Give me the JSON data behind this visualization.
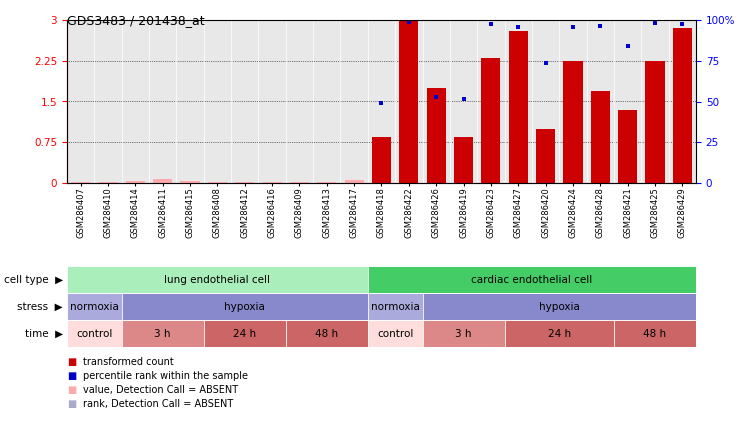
{
  "title": "GDS3483 / 201438_at",
  "samples": [
    "GSM286407",
    "GSM286410",
    "GSM286414",
    "GSM286411",
    "GSM286415",
    "GSM286408",
    "GSM286412",
    "GSM286416",
    "GSM286409",
    "GSM286413",
    "GSM286417",
    "GSM286418",
    "GSM286422",
    "GSM286426",
    "GSM286419",
    "GSM286423",
    "GSM286427",
    "GSM286420",
    "GSM286424",
    "GSM286428",
    "GSM286421",
    "GSM286425",
    "GSM286429"
  ],
  "bar_values": [
    0.02,
    0.01,
    0.04,
    0.07,
    0.03,
    0.01,
    0.01,
    0.01,
    0.01,
    0.02,
    0.05,
    0.85,
    3.0,
    1.75,
    0.85,
    2.3,
    2.8,
    1.0,
    2.25,
    1.7,
    1.35,
    2.25,
    2.85
  ],
  "dot_values": [
    0.0,
    0.0,
    0.0,
    0.0,
    0.0,
    0.0,
    0.0,
    0.0,
    0.0,
    0.0,
    0.0,
    1.47,
    2.96,
    1.58,
    1.55,
    2.92,
    2.88,
    2.2,
    2.87,
    2.89,
    2.52,
    2.94,
    2.92
  ],
  "bar_absent": [
    true,
    true,
    true,
    true,
    true,
    true,
    true,
    true,
    true,
    true,
    true,
    false,
    false,
    false,
    false,
    false,
    false,
    false,
    false,
    false,
    false,
    false,
    false
  ],
  "dot_absent": [
    true,
    true,
    true,
    true,
    true,
    true,
    true,
    true,
    true,
    true,
    true,
    false,
    false,
    false,
    false,
    false,
    false,
    false,
    false,
    false,
    false,
    false,
    false
  ],
  "ylim": [
    0,
    3.0
  ],
  "yticks_left": [
    0,
    0.75,
    1.5,
    2.25,
    3.0
  ],
  "ytick_labels_left": [
    "0",
    "0.75",
    "1.5",
    "2.25",
    "3"
  ],
  "yticks_right": [
    0,
    25,
    50,
    75,
    100
  ],
  "ytick_labels_right": [
    "0",
    "25",
    "50",
    "75",
    "100%"
  ],
  "bar_color": "#cc0000",
  "bar_absent_color": "#ffaaaa",
  "dot_color": "#0000cc",
  "dot_absent_color": "#aaaacc",
  "plot_bg_color": "#e8e8e8",
  "cell_type_row": {
    "label": "cell type",
    "groups": [
      {
        "text": "lung endothelial cell",
        "start": 0,
        "end": 10,
        "color": "#aaeebb"
      },
      {
        "text": "cardiac endothelial cell",
        "start": 11,
        "end": 22,
        "color": "#44cc66"
      }
    ]
  },
  "stress_row": {
    "label": "stress",
    "groups": [
      {
        "text": "normoxia",
        "start": 0,
        "end": 1,
        "color": "#aaaadd"
      },
      {
        "text": "hypoxia",
        "start": 2,
        "end": 10,
        "color": "#8888cc"
      },
      {
        "text": "normoxia",
        "start": 11,
        "end": 12,
        "color": "#aaaadd"
      },
      {
        "text": "hypoxia",
        "start": 13,
        "end": 22,
        "color": "#8888cc"
      }
    ]
  },
  "time_row": {
    "label": "time",
    "groups": [
      {
        "text": "control",
        "start": 0,
        "end": 1,
        "color": "#ffdddd"
      },
      {
        "text": "3 h",
        "start": 2,
        "end": 4,
        "color": "#dd8888"
      },
      {
        "text": "24 h",
        "start": 5,
        "end": 7,
        "color": "#cc6666"
      },
      {
        "text": "48 h",
        "start": 8,
        "end": 10,
        "color": "#cc6666"
      },
      {
        "text": "control",
        "start": 11,
        "end": 12,
        "color": "#ffdddd"
      },
      {
        "text": "3 h",
        "start": 13,
        "end": 15,
        "color": "#dd8888"
      },
      {
        "text": "24 h",
        "start": 16,
        "end": 19,
        "color": "#cc6666"
      },
      {
        "text": "48 h",
        "start": 20,
        "end": 22,
        "color": "#cc6666"
      }
    ]
  }
}
